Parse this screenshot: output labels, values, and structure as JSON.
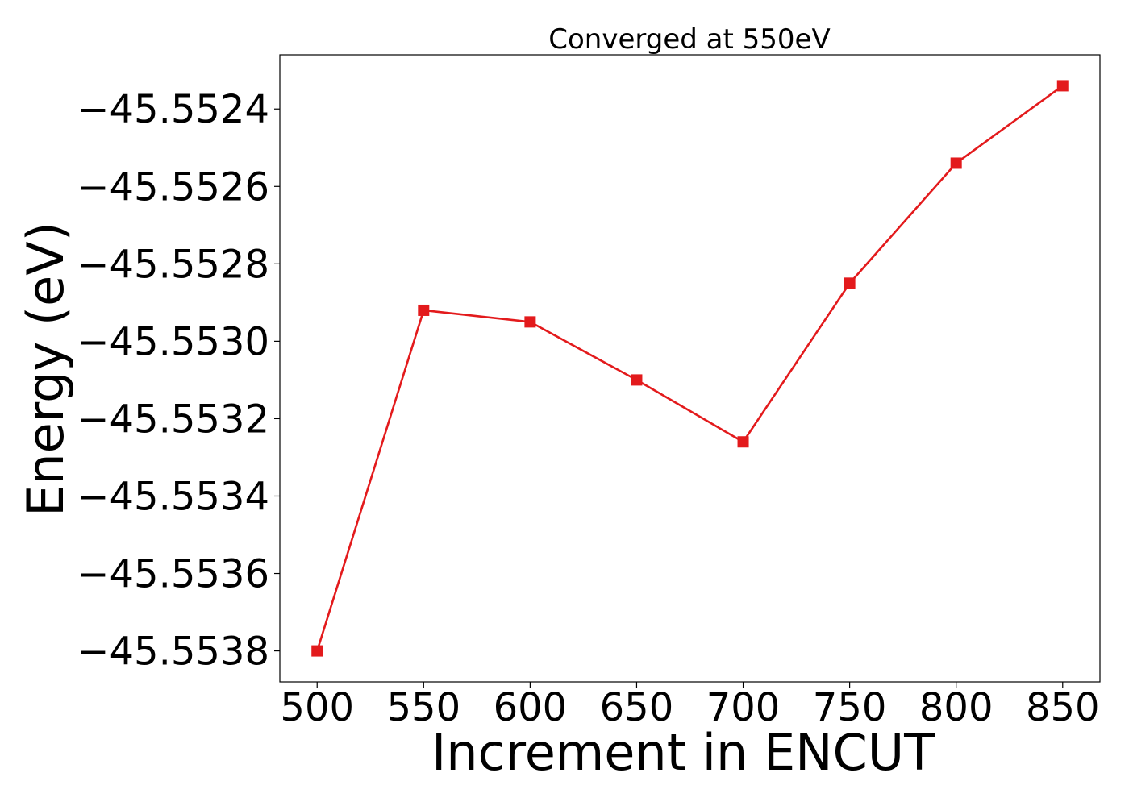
{
  "chart_data": {
    "type": "line",
    "title": "Converged at 550eV",
    "xlabel": "Increment in ENCUT",
    "ylabel": "Energy (eV)",
    "x": [
      500,
      550,
      600,
      650,
      700,
      750,
      800,
      850
    ],
    "series": [
      {
        "values": [
          -45.5538,
          -45.55292,
          -45.55295,
          -45.5531,
          -45.55326,
          -45.55285,
          -45.55254,
          -45.55234
        ],
        "color": "#e31a1c",
        "marker": "square"
      }
    ],
    "xticks": [
      500,
      550,
      600,
      650,
      700,
      750,
      800,
      850
    ],
    "xtick_labels": [
      "500",
      "550",
      "600",
      "650",
      "700",
      "750",
      "800",
      "850"
    ],
    "yticks": [
      -45.5538,
      -45.5536,
      -45.5534,
      -45.5532,
      -45.553,
      -45.5528,
      -45.5526,
      -45.5524
    ],
    "ytick_labels": [
      "−45.5538",
      "−45.5536",
      "−45.5534",
      "−45.5532",
      "−45.5530",
      "−45.5528",
      "−45.5526",
      "−45.5524"
    ],
    "xlim": [
      482.5,
      867.5
    ],
    "ylim": [
      -45.55388,
      -45.55226
    ],
    "grid": false,
    "legend": "none"
  }
}
